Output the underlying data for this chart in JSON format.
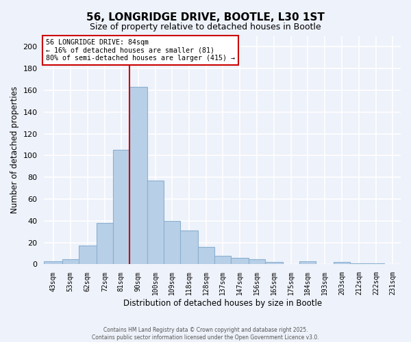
{
  "title": "56, LONGRIDGE DRIVE, BOOTLE, L30 1ST",
  "subtitle": "Size of property relative to detached houses in Bootle",
  "xlabel": "Distribution of detached houses by size in Bootle",
  "ylabel": "Number of detached properties",
  "bar_color": "#b8cfe8",
  "bar_edge_color": "#8ab0d0",
  "background_color": "#eef2fa",
  "grid_color": "#ffffff",
  "bin_labels": [
    "43sqm",
    "53sqm",
    "62sqm",
    "72sqm",
    "81sqm",
    "90sqm",
    "100sqm",
    "109sqm",
    "118sqm",
    "128sqm",
    "137sqm",
    "147sqm",
    "156sqm",
    "165sqm",
    "175sqm",
    "184sqm",
    "193sqm",
    "203sqm",
    "212sqm",
    "222sqm",
    "231sqm"
  ],
  "bar_heights": [
    3,
    5,
    17,
    38,
    105,
    163,
    77,
    40,
    31,
    16,
    8,
    6,
    5,
    2,
    0,
    3,
    0,
    2,
    1,
    1,
    0
  ],
  "ylim": [
    0,
    210
  ],
  "yticks": [
    0,
    20,
    40,
    60,
    80,
    100,
    120,
    140,
    160,
    180,
    200
  ],
  "vline_color": "#cc0000",
  "annotation_title": "56 LONGRIDGE DRIVE: 84sqm",
  "annotation_line1": "← 16% of detached houses are smaller (81)",
  "annotation_line2": "80% of semi-detached houses are larger (415) →",
  "annotation_box_color": "#ffffff",
  "annotation_box_edge_color": "#cc0000",
  "bin_edges": [
    38.5,
    48.5,
    57.5,
    67.5,
    76.5,
    85.5,
    95.5,
    104.5,
    113.5,
    123.5,
    132.5,
    141.5,
    151.5,
    160.5,
    170.5,
    179.5,
    188.5,
    198.5,
    207.5,
    217.5,
    226.5,
    235.5
  ],
  "footer_line1": "Contains HM Land Registry data © Crown copyright and database right 2025.",
  "footer_line2": "Contains public sector information licensed under the Open Government Licence v3.0."
}
